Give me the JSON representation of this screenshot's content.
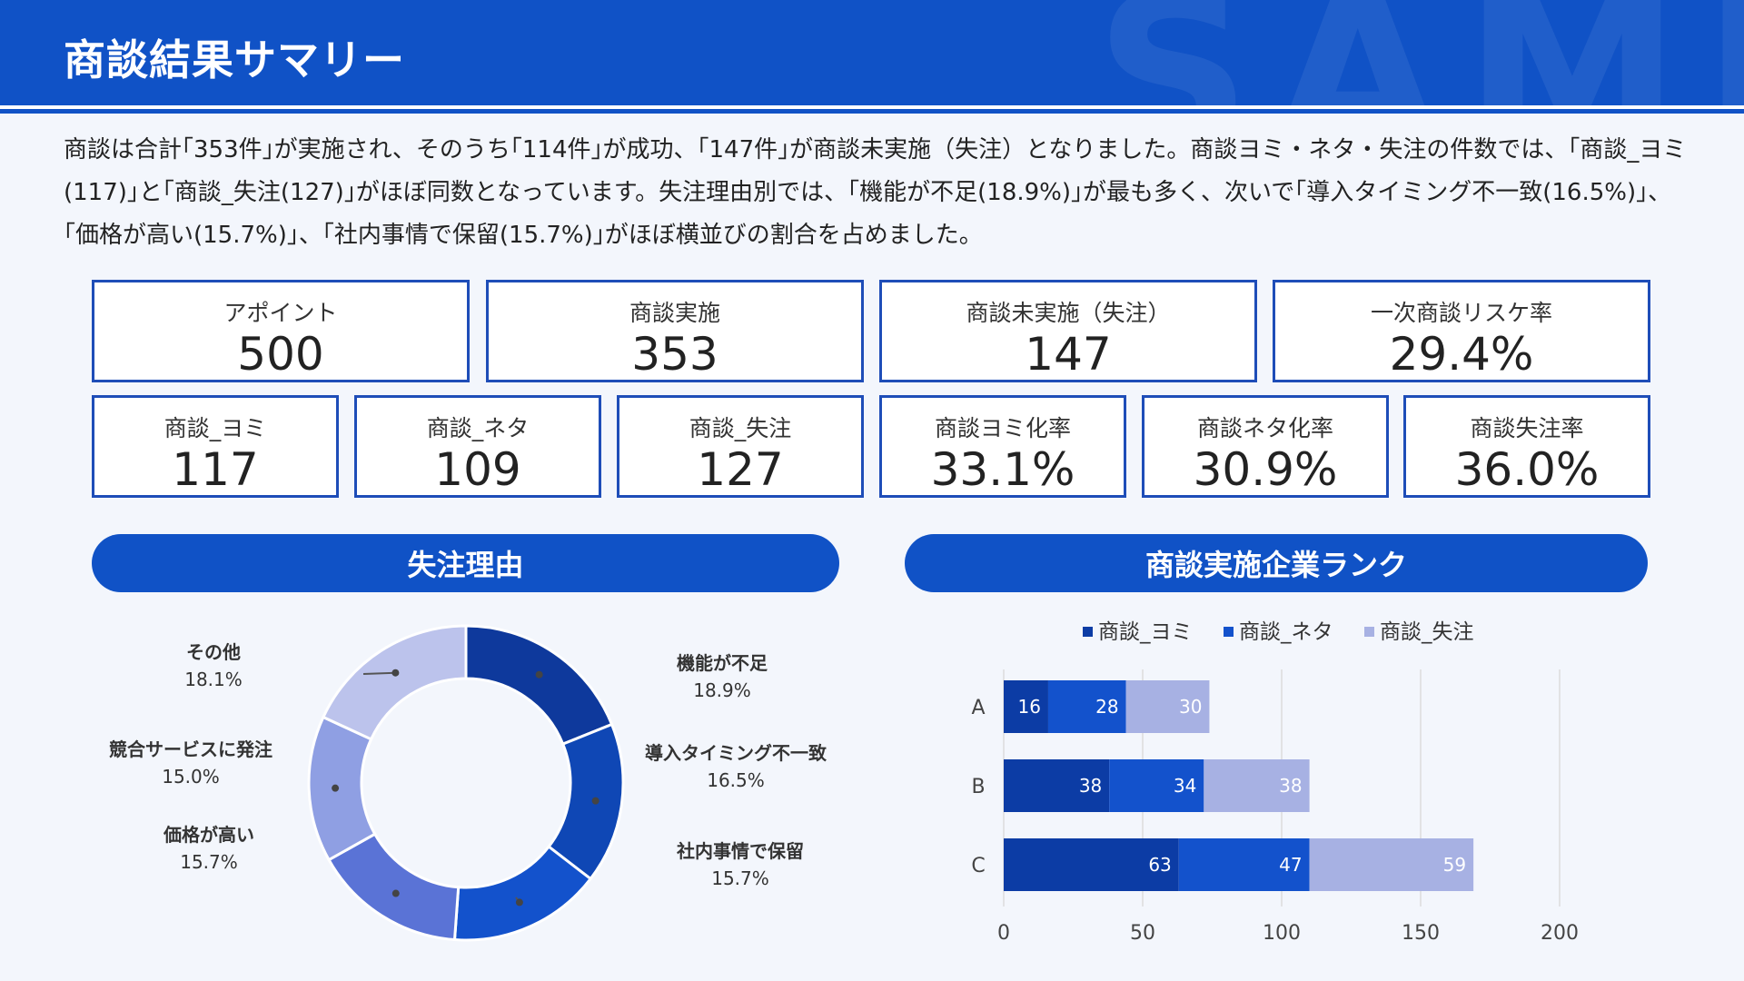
{
  "header": {
    "title": "商談結果サマリー",
    "watermark": "SAMPLE"
  },
  "summary_text": "商談は合計｢353件｣が実施され、そのうち｢114件｣が成功、｢147件｣が商談未実施（失注）となりました。商談ヨミ・ネタ・失注の件数では、｢商談_ヨミ(117)｣と｢商談_失注(127)｣がほぼ同数となっています。失注理由別では、｢機能が不足(18.9%)｣が最も多く、次いで｢導入タイミング不一致(16.5%)｣、｢価格が高い(15.7%)｣、｢社内事情で保留(15.7%)｣がほぼ横並びの割合を占めました。",
  "kpis_top": [
    {
      "label": "アポイント",
      "value": "500"
    },
    {
      "label": "商談実施",
      "value": "353"
    },
    {
      "label": "商談未実施（失注）",
      "value": "147"
    },
    {
      "label": "一次商談リスケ率",
      "value": "29.4%"
    }
  ],
  "kpis_bottom": [
    {
      "label": "商談_ヨミ",
      "value": "117"
    },
    {
      "label": "商談_ネタ",
      "value": "109"
    },
    {
      "label": "商談_失注",
      "value": "127"
    },
    {
      "label": "商談ヨミ化率",
      "value": "33.1%"
    },
    {
      "label": "商談ネタ化率",
      "value": "30.9%"
    },
    {
      "label": "商談失注率",
      "value": "36.0%"
    }
  ],
  "sections": {
    "left_title": "失注理由",
    "right_title": "商談実施企業ランク"
  },
  "colors": {
    "primary": "#1052c6",
    "yomi": "#0c3ca5",
    "neta": "#1352cc",
    "shicchu": "#a7b1e3"
  },
  "chart_data": [
    {
      "type": "pie",
      "donut": true,
      "title": "失注理由",
      "labels": [
        "機能が不足",
        "導入タイミング不一致",
        "社内事情で保留",
        "価格が高い",
        "競合サービスに発注",
        "その他"
      ],
      "values": [
        18.9,
        16.5,
        15.7,
        15.7,
        15.0,
        18.1
      ],
      "value_labels": [
        "18.9%",
        "16.5%",
        "15.7%",
        "15.7%",
        "15.0%",
        "18.1%"
      ],
      "colors": [
        "#0e399c",
        "#0f47b5",
        "#1352cc",
        "#5a73d6",
        "#8f9fe3",
        "#bcc3ec"
      ]
    },
    {
      "type": "bar",
      "orientation": "horizontal",
      "stacked": true,
      "title": "商談実施企業ランク",
      "categories": [
        "A",
        "B",
        "C"
      ],
      "series": [
        {
          "name": "商談_ヨミ",
          "values": [
            16,
            38,
            63
          ],
          "color": "#0c3ca5"
        },
        {
          "name": "商談_ネタ",
          "values": [
            28,
            34,
            47
          ],
          "color": "#1352cc"
        },
        {
          "name": "商談_失注",
          "values": [
            30,
            38,
            59
          ],
          "color": "#a7b1e3"
        }
      ],
      "xlim": [
        0,
        200
      ],
      "xticks": [
        "0",
        "50",
        "100",
        "150",
        "200"
      ],
      "legend": "top",
      "grid": true
    }
  ]
}
